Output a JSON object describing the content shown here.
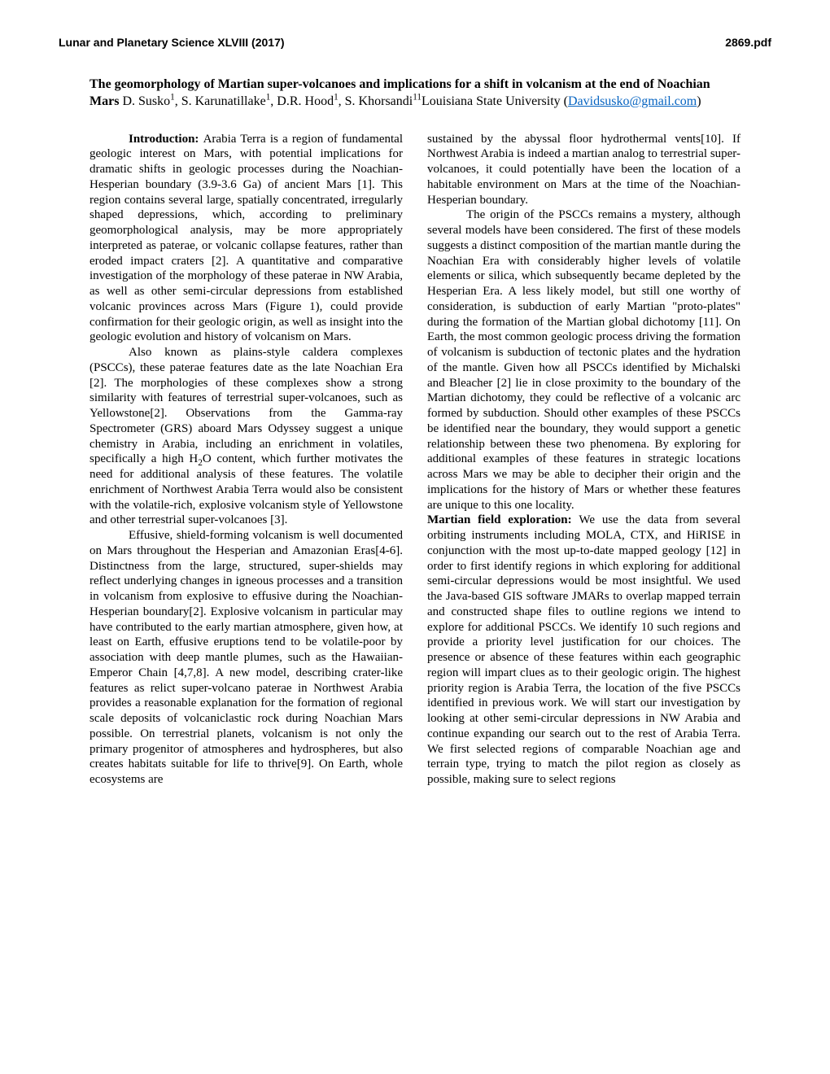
{
  "header": {
    "conference": "Lunar and Planetary Science XLVIII (2017)",
    "docnum": "2869.pdf"
  },
  "title": {
    "bold": "The geomorphology of Martian super-volcanoes and implications for a shift in volcanism at the end of Noachian Mars ",
    "authors_pre": "D. Susko",
    "sup1": "1",
    "authors_mid1": ", S. Karunatillake",
    "authors_mid2": ", D.R. Hood",
    "authors_mid3": ", S. Khorsandi",
    "sup_last": "11",
    "affil": "Louisiana State University (",
    "email": "Davidsusko@gmail.com",
    "closing_paren": ")"
  },
  "col1": {
    "p1_head": "Introduction: ",
    "p1": "Arabia Terra is a region of fundamental geologic interest on Mars, with potential implications for dramatic shifts in geologic processes during the Noachian-Hesperian boundary (3.9-3.6 Ga) of ancient Mars [1]. This region contains several large, spatially concentrated, irregularly shaped depressions, which, according to preliminary geomorphological analysis, may be more appropriately interpreted as paterae, or volcanic collapse features, rather than eroded impact craters [2]. A quantitative and comparative investigation of the morphology of these paterae in NW Arabia, as well as other semi-circular depressions from established volcanic provinces across Mars (Figure 1), could provide confirmation for their geologic origin, as well as insight into the geologic evolution and history of volcanism on Mars.",
    "p2a": "Also known as plains-style caldera complexes (PSCCs),  these paterae features date as the late Noachian Era [2]. The morphologies of these complexes show a strong similarity with features of terrestrial super-volcanoes, such as Yellowstone[2]. Observations from the Gamma-ray Spectrometer (GRS) aboard Mars Odyssey suggest a unique chemistry in Arabia, including an enrichment in volatiles, specifically a high H",
    "p2_sub": "2",
    "p2b": "O content, which further motivates the need for additional analysis of these features. The volatile enrichment of Northwest Arabia Terra would also be consistent with the volatile-rich, explosive volcanism style of Yellowstone and other terrestrial super-volcanoes [3].",
    "p3": "Effusive, shield-forming volcanism is well documented on Mars throughout the Hesperian and Amazonian Eras[4-6]. Distinctness from the large, structured, super-shields may reflect underlying changes in igneous processes and a transition in volcanism from explosive to effusive during the Noachian-Hesperian boundary[2]. Explosive volcanism in particular may have contributed to the early martian atmosphere, given how, at least on Earth, effusive eruptions tend to be volatile-poor by association with deep mantle plumes, such as the Hawaiian-Emperor Chain [4,7,8]. A new model, describing crater-like features as relict super-volcano paterae in Northwest Arabia provides a reasonable explanation for the formation of regional scale deposits of volcaniclastic rock during Noachian Mars possible. On terrestrial planets, volcanism is not only the primary progenitor of atmospheres and hydrospheres, but also creates habitats suitable for life to thrive[9]. On Earth, whole ecosystems are"
  },
  "col2": {
    "p1": "sustained by the abyssal floor hydrothermal vents[10]. If Northwest Arabia is indeed a martian analog to terrestrial super-volcanoes, it could potentially have been the location of a habitable environment on Mars at the time of the Noachian-Hesperian boundary.",
    "p2": "The origin of the PSCCs remains a mystery, although several models have been considered. The first of these models suggests a distinct composition of the martian mantle during the Noachian Era with considerably higher levels of volatile elements or silica, which subsequently became depleted by the Hesperian Era. A less likely model, but still one worthy of consideration, is subduction of early Martian \"proto-plates\" during the formation of the Martian global dichotomy [11]. On Earth, the most common geologic process driving the formation of volcanism is subduction of tectonic plates and the hydration of the mantle. Given how all PSCCs identified by Michalski and Bleacher [2] lie in close proximity to the boundary of the Martian dichotomy, they could be reflective of a volcanic arc formed by subduction. Should other examples of these PSCCs be identified near the boundary, they would support a genetic relationship between these two phenomena. By exploring for additional examples of these features in strategic locations across Mars we may be able to decipher their origin and the implications for the history of Mars or whether these features are unique to this one locality.",
    "p3_head": "Martian field exploration: ",
    "p3": "We use the data from several orbiting instruments including MOLA, CTX, and HiRISE in conjunction with the most up-to-date mapped geology [12] in order to first identify regions in which exploring for additional semi-circular depressions would be most insightful. We used the Java-based GIS software JMARs to overlap mapped terrain and constructed shape files to outline regions we intend to explore for additional PSCCs. We identify 10 such regions and provide a priority level justification for our choices. The presence or absence of these features within each geographic region will impart clues as to their geologic origin. The highest priority region is Arabia Terra, the location of the five PSCCs identified in previous work. We will start our investigation by looking at other semi-circular depressions in NW Arabia and continue expanding our search out to the rest of Arabia Terra. We first selected regions of comparable Noachian age and terrain type, trying to match the pilot region as closely as possible, making sure to select regions"
  }
}
